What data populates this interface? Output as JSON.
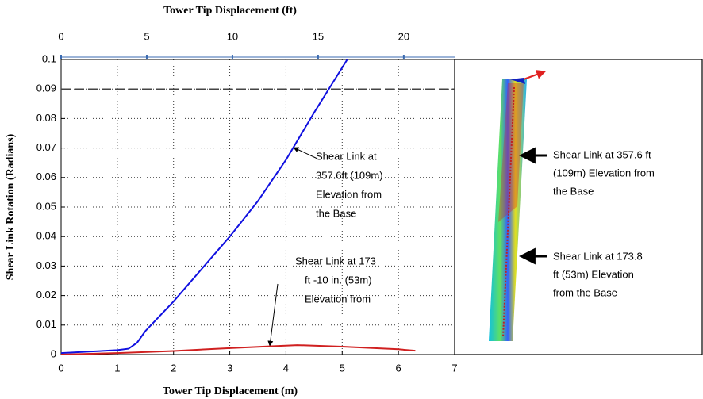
{
  "chart_data": {
    "type": "line",
    "xlabel": "Tower Tip Displacement (m)",
    "x2label": "Tower Tip Displacement (ft)",
    "ylabel": "Shear Link Rotation (Radians)",
    "xlim": [
      0,
      7
    ],
    "xticks": [
      0,
      1,
      2,
      3,
      4,
      5,
      6,
      7
    ],
    "x2lim": [
      0,
      22.97
    ],
    "x2ticks": [
      0,
      5,
      10,
      15,
      20
    ],
    "ylim": [
      0,
      0.1
    ],
    "yticks": [
      0,
      0.01,
      0.02,
      0.03,
      0.04,
      0.05,
      0.06,
      0.07,
      0.08,
      0.09,
      0.1
    ],
    "grid": true,
    "threshold": 0.09,
    "series": [
      {
        "color": "#1010e0",
        "x": [
          0,
          0.5,
          1,
          1.2,
          1.35,
          1.5,
          2,
          2.5,
          3,
          3.5,
          4,
          4.5,
          5.09
        ],
        "values": [
          0.0005,
          0.001,
          0.0015,
          0.002,
          0.004,
          0.008,
          0.018,
          0.029,
          0.04,
          0.052,
          0.066,
          0.082,
          0.1
        ]
      },
      {
        "color": "#d02020",
        "x": [
          0,
          1,
          2,
          3,
          3.7,
          4.2,
          5,
          6,
          6.3
        ],
        "values": [
          0,
          0.0005,
          0.0012,
          0.0022,
          0.0028,
          0.0032,
          0.0027,
          0.0018,
          0.0013
        ]
      }
    ],
    "annotations": [
      {
        "lines": [
          "Shear Link at",
          "357.6ft (109m)",
          "Elevation from",
          "the Base"
        ]
      },
      {
        "lines": [
          "Shear Link at 173",
          "ft -10 in. (53m)",
          "Elevation from"
        ]
      }
    ],
    "image_annotations": [
      {
        "lines": [
          "Shear Link at 357.6 ft",
          "(109m) Elevation from",
          "the Base"
        ]
      },
      {
        "lines": [
          "Shear Link at 173.8",
          "ft (53m) Elevation",
          "from the Base"
        ]
      }
    ]
  }
}
